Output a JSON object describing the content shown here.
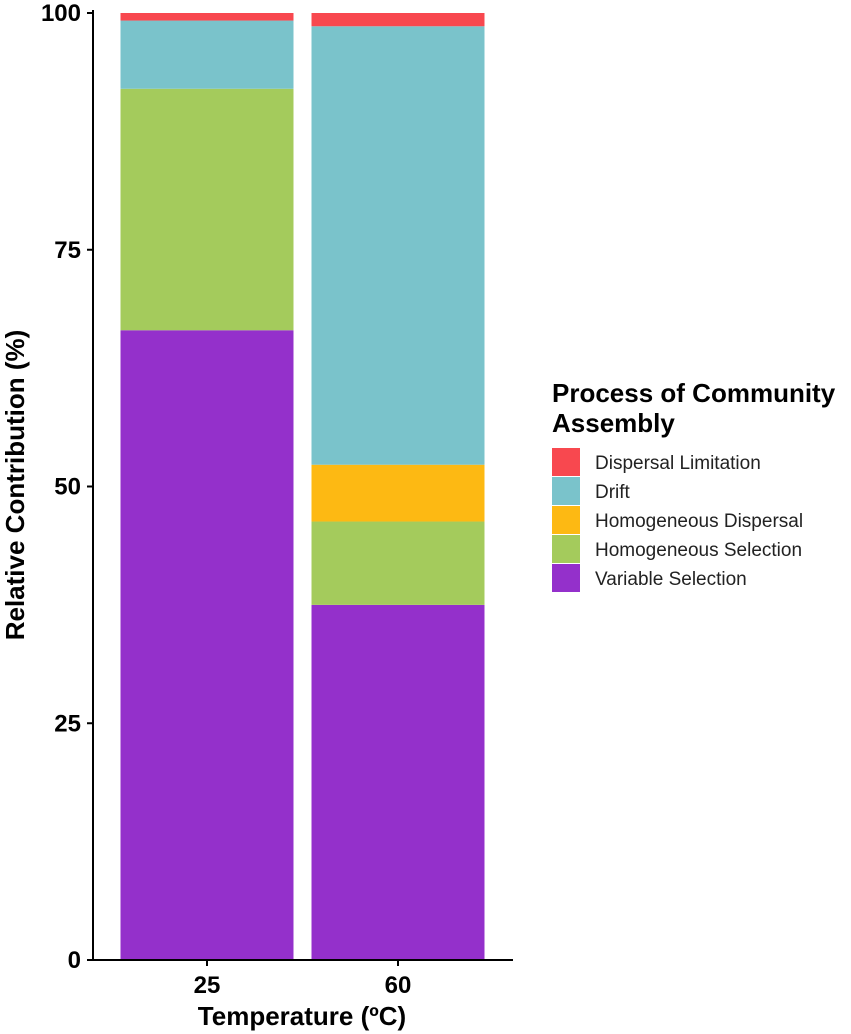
{
  "chart_data": {
    "type": "bar",
    "stacked": true,
    "categories": [
      "25",
      "60"
    ],
    "series": [
      {
        "name": "Variable Selection",
        "color": "#9430CB",
        "values": [
          66.5,
          37.5
        ]
      },
      {
        "name": "Homogeneous Selection",
        "color": "#A4CB5C",
        "values": [
          25.5,
          8.8
        ]
      },
      {
        "name": "Homogeneous Dispersal",
        "color": "#FDB913",
        "values": [
          0,
          6.0
        ]
      },
      {
        "name": "Drift",
        "color": "#7AC3CB",
        "values": [
          7.2,
          46.3
        ]
      },
      {
        "name": "Dispersal Limitation",
        "color": "#F8484F",
        "values": [
          0.8,
          1.4
        ]
      }
    ],
    "xlabel": "Temperature (ºC)",
    "ylabel": "Relative Contribution (%)",
    "ylim": [
      0,
      100
    ],
    "yticks": [
      "0",
      "25",
      "50",
      "75",
      "100"
    ],
    "grid": false,
    "legend": {
      "title_line1": "Process of Community",
      "title_line2": "Assembly",
      "position": "right",
      "entries": [
        {
          "label": "Dispersal Limitation",
          "color": "#F8484F"
        },
        {
          "label": "Drift",
          "color": "#7AC3CB"
        },
        {
          "label": "Homogeneous Dispersal",
          "color": "#FDB913"
        },
        {
          "label": "Homogeneous Selection",
          "color": "#A4CB5C"
        },
        {
          "label": "Variable Selection",
          "color": "#9430CB"
        }
      ]
    }
  }
}
